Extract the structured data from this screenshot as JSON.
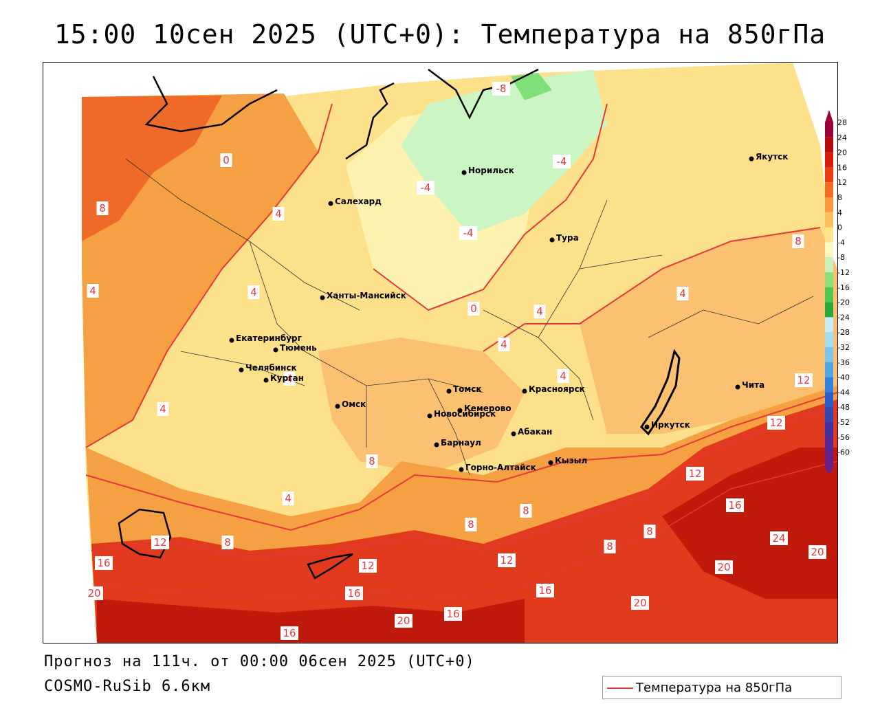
{
  "header": {
    "title": "15:00 10сен 2025 (UTC+0): Температура на 850гПа"
  },
  "footer": {
    "forecast": "Прогноз на 111ч. от 00:00 06сен 2025 (UTC+0)",
    "model": "COSMO-RuSib 6.6км"
  },
  "legend": {
    "label": "Температура на 850гПа",
    "line_color": "#e5383b"
  },
  "colors": {
    "cold_green": "#ccf5c4",
    "green": "#7fe07a",
    "light_yellow": "#fdf2b0",
    "yellow": "#fde08a",
    "light_orange": "#fbc070",
    "orange": "#f6a044",
    "dark_orange": "#ef6a28",
    "red": "#e23a1c",
    "dark_red": "#c01a0c",
    "isoline": "#e5383b"
  },
  "scale": {
    "labels": [
      "28",
      "24",
      "20",
      "16",
      "12",
      "8",
      "4",
      "0",
      "-4",
      "-8",
      "-12",
      "-16",
      "-20",
      "-24",
      "-28",
      "-32",
      "-36",
      "-40",
      "-44",
      "-48",
      "-52",
      "-56",
      "-60"
    ],
    "colors": [
      "#9c0038",
      "#b80a0a",
      "#d81e0a",
      "#ee3c10",
      "#f66c24",
      "#fa9a3c",
      "#fcc05c",
      "#fde48c",
      "#fdf7c4",
      "#c8f0b8",
      "#8ee07a",
      "#4ec850",
      "#2aa83a",
      "#c8ecf6",
      "#a4dcf0",
      "#7cc4ee",
      "#4ea6e8",
      "#2c84e0",
      "#2660c8",
      "#3048b0",
      "#4030a0",
      "#582898",
      "#6a2088"
    ]
  },
  "cities": [
    {
      "name": "Норильск"
    },
    {
      "name": "Якутск"
    },
    {
      "name": "Салехард"
    },
    {
      "name": "Тура"
    },
    {
      "name": "Ханты-Мансийск"
    },
    {
      "name": "Екатеринбург"
    },
    {
      "name": "Тюмень"
    },
    {
      "name": "Челябинск"
    },
    {
      "name": "Курган"
    },
    {
      "name": "Омск"
    },
    {
      "name": "Новосибирск"
    },
    {
      "name": "Томск"
    },
    {
      "name": "Кемерово"
    },
    {
      "name": "Красноярск"
    },
    {
      "name": "Барнаул"
    },
    {
      "name": "Абакан"
    },
    {
      "name": "Горно-Алтайск"
    },
    {
      "name": "Кызыл"
    },
    {
      "name": "Иркутск"
    },
    {
      "name": "Чита"
    }
  ],
  "isoline_labels": [
    "-8",
    "-4",
    "-4",
    "-4",
    "0",
    "0",
    "4",
    "4",
    "4",
    "4",
    "4",
    "4",
    "4",
    "4",
    "4",
    "4",
    "8",
    "8",
    "8",
    "8",
    "8",
    "8",
    "8",
    "8",
    "12",
    "12",
    "12",
    "12",
    "12",
    "12",
    "16",
    "16",
    "16",
    "16",
    "16",
    "16",
    "20",
    "20",
    "20",
    "20",
    "20",
    "24"
  ]
}
